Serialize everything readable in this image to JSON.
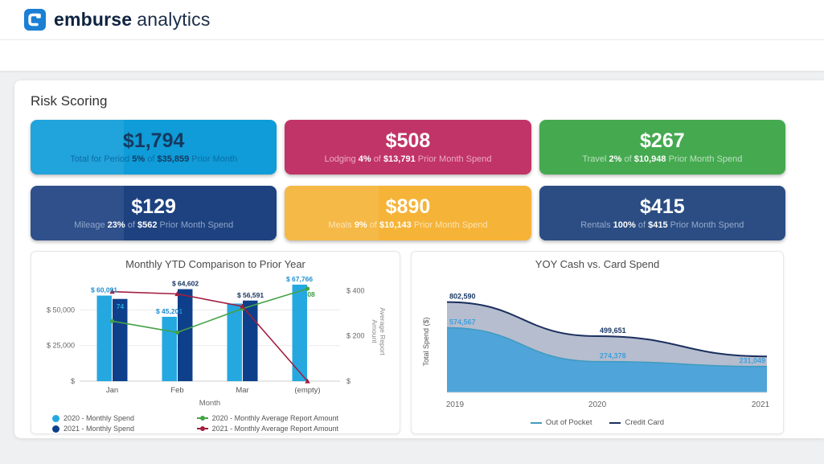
{
  "header": {
    "brand_bold": "emburse",
    "brand_light": "analytics",
    "logo_color": "#1b7fd4"
  },
  "page_title": "Risk Scoring",
  "strings": {
    "of": "of"
  },
  "kpi_cards": [
    {
      "value": "$1,794",
      "category": "Total for Period",
      "percent": "5%",
      "amount": "$35,859",
      "suffix": "Prior Month",
      "bg": "#0f9cd8",
      "value_color": "#16395f",
      "sub_color": "#0d6ca6",
      "sheen": true
    },
    {
      "value": "$508",
      "category": "Lodging",
      "percent": "4%",
      "amount": "$13,791",
      "suffix": "Prior Month Spend",
      "bg": "#c13467",
      "value_color": "#ffffff",
      "sub_color": "#eaaac6",
      "sheen": false
    },
    {
      "value": "$267",
      "category": "Travel",
      "percent": "2%",
      "amount": "$10,948",
      "suffix": "Prior Month Spend",
      "bg": "#45a950",
      "value_color": "#ffffff",
      "sub_color": "#b9e2bd",
      "sheen": false
    },
    {
      "value": "$129",
      "category": "Mileage",
      "percent": "23%",
      "amount": "$562",
      "suffix": "Prior Month Spend",
      "bg": "#1e4280",
      "value_color": "#ffffff",
      "sub_color": "#8fa5c8",
      "sheen": true
    },
    {
      "value": "$890",
      "category": "Meals",
      "percent": "9%",
      "amount": "$10,143",
      "suffix": "Prior Month Spend",
      "bg": "#f5b338",
      "value_color": "#fffef8",
      "sub_color": "#fbe4b4",
      "sheen": true
    },
    {
      "value": "$415",
      "category": "Rentals",
      "percent": "100%",
      "amount": "$415",
      "suffix": "Prior Month Spend",
      "bg": "#2b4d83",
      "value_color": "#ffffff",
      "sub_color": "#97aacb",
      "sheen": false
    }
  ],
  "chart_data": [
    {
      "type": "combo-bar-line",
      "title": "Monthly YTD Comparison to Prior Year",
      "categories": [
        "Jan",
        "Feb",
        "Mar",
        "(empty)"
      ],
      "xlabel": "Month",
      "y_left": {
        "tick_labels": [
          "$",
          "$ 25,000",
          "$ 50,000"
        ],
        "tick_values": [
          0,
          25000,
          50000
        ],
        "max": 70000
      },
      "y_right": {
        "tick_labels": [
          "$",
          "$ 200",
          "$ 400"
        ],
        "tick_values": [
          0,
          200,
          400
        ],
        "max": 440,
        "title": [
          "Average Report",
          "Amount"
        ]
      },
      "legend_position": "bottom",
      "series": [
        {
          "name": "2020 - Monthly Spend",
          "kind": "bar",
          "axis": "left",
          "color": "#25a8e0",
          "label_color": "#1f8ed2",
          "values": [
            60091,
            45201,
            54500,
            67766
          ],
          "labels": [
            "$ 60,091",
            "$ 45,201",
            null,
            "$ 67,766"
          ]
        },
        {
          "name": "2021 - Monthly Spend",
          "kind": "bar",
          "axis": "left",
          "color": "#0e3f8a",
          "label_color": "#14335f",
          "values": [
            57740,
            64602,
            56591,
            null
          ],
          "labels": [
            null,
            "$ 64,602",
            "$ 56,591",
            null
          ]
        },
        {
          "name": "2020 - Monthly Average Report Amount",
          "kind": "line",
          "axis": "right",
          "color": "#44a247",
          "label_color": "#3f9e43",
          "values": [
            265,
            215,
            320,
            408
          ],
          "labels": [
            null,
            null,
            null,
            "$ 408"
          ]
        },
        {
          "name": "2021 - Monthly Average Report Amount",
          "kind": "line",
          "axis": "right",
          "color": "#a11e3f",
          "label_color": "#b23568",
          "values": [
            395,
            385,
            330,
            0
          ],
          "labels": [
            null,
            null,
            null,
            "$ 0"
          ]
        }
      ],
      "partially_hidden_labels": [
        {
          "visible_text": "74",
          "category": "Jan",
          "color": "#25a8e0"
        },
        {
          "visible_text": "$ 5 5",
          "category": "Mar",
          "color": "#b23568"
        }
      ]
    },
    {
      "type": "area",
      "title": "YOY Cash vs. Card Spend",
      "x": [
        "2019",
        "2020",
        "2021"
      ],
      "ylabel": "Total Spend ($)",
      "ylim": [
        0,
        900000
      ],
      "legend_position": "bottom",
      "series": [
        {
          "name": "Credit Card",
          "color": "#1b2f5e",
          "fill": "#a9b1c6",
          "label_color": "#1b3a66",
          "values": [
            802590,
            499651,
            320000
          ],
          "labels": [
            "802,590",
            "499,651",
            null
          ]
        },
        {
          "name": "Out of Pocket",
          "color": "#3f9bc0",
          "fill": "#4aa2d9",
          "label_color": "#3da0dc",
          "values": [
            574567,
            274378,
            231049
          ],
          "labels": [
            "574,567",
            "274,378",
            "231,049"
          ]
        }
      ]
    }
  ]
}
